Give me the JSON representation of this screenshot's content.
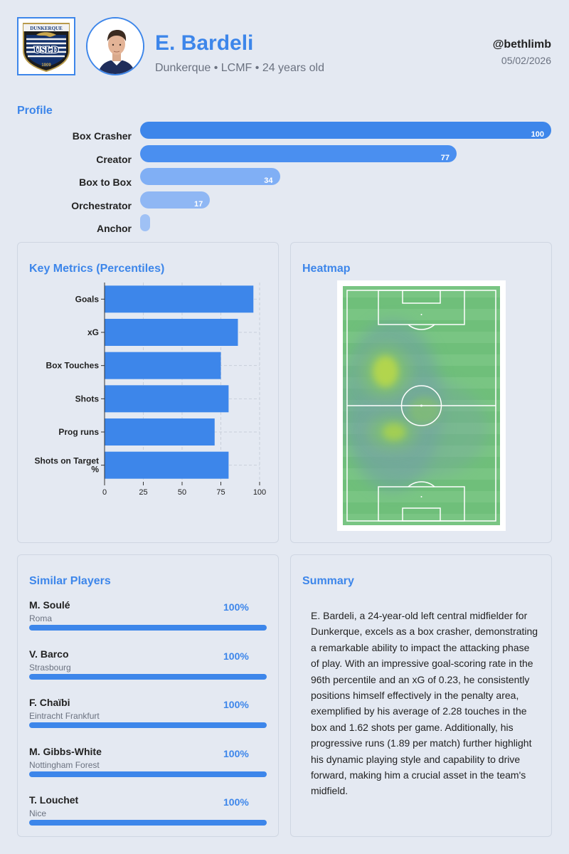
{
  "header": {
    "club_logo_text": "DUNKERQUE",
    "club_logo_monogram": "USLD",
    "club_logo_year": "1909",
    "player_name": "E. Bardeli",
    "player_sub": "Dunkerque • LCMF • 24 years old",
    "handle": "@bethlimb",
    "date": "05/02/2026"
  },
  "profile": {
    "title": "Profile",
    "items": [
      {
        "label": "Box Crasher",
        "value": 100,
        "value_label": "100",
        "color": "#3d86ea"
      },
      {
        "label": "Creator",
        "value": 77,
        "value_label": "77",
        "color": "#4a8ff0"
      },
      {
        "label": "Box to Box",
        "value": 34,
        "value_label": "34",
        "color": "#80aff5"
      },
      {
        "label": "Orchestrator",
        "value": 17,
        "value_label": "17",
        "color": "#8fb7f4"
      },
      {
        "label": "Anchor",
        "value": 0,
        "value_label": "",
        "color": "#9fc1f5"
      }
    ]
  },
  "metrics": {
    "title": "Key Metrics (Percentiles)"
  },
  "chart_data": {
    "type": "bar",
    "orientation": "horizontal",
    "categories": [
      "Goals",
      "xG",
      "Box Touches",
      "Shots",
      "Prog runs",
      "Shots on Target %"
    ],
    "category_lines": [
      [
        "Goals"
      ],
      [
        "xG"
      ],
      [
        "Box Touches"
      ],
      [
        "Shots"
      ],
      [
        "Prog runs"
      ],
      [
        "Shots on Target",
        "%"
      ]
    ],
    "values": [
      96,
      86,
      75,
      80,
      71,
      80
    ],
    "xlim": [
      0,
      100
    ],
    "xticks": [
      0,
      25,
      50,
      75,
      100
    ],
    "grid": true,
    "bar_color": "#3d86ea"
  },
  "heatmap": {
    "title": "Heatmap"
  },
  "similar": {
    "title": "Similar Players",
    "players": [
      {
        "name": "M. Soulé",
        "club": "Roma",
        "pct_label": "100%",
        "pct": 100
      },
      {
        "name": "V. Barco",
        "club": "Strasbourg",
        "pct_label": "100%",
        "pct": 100
      },
      {
        "name": "F. Chaïbi",
        "club": "Eintracht Frankfurt",
        "pct_label": "100%",
        "pct": 100
      },
      {
        "name": "M. Gibbs-White",
        "club": "Nottingham Forest",
        "pct_label": "100%",
        "pct": 100
      },
      {
        "name": "T. Louchet",
        "club": "Nice",
        "pct_label": "100%",
        "pct": 100
      }
    ]
  },
  "summary": {
    "title": "Summary",
    "text": "E. Bardeli, a 24-year-old left central midfielder for Dunkerque, excels as a box crasher, demonstrating a remarkable ability to impact the attacking phase of play. With an impressive goal-scoring rate in the 96th percentile and an xG of 0.23, he consistently positions himself effectively in the penalty area, exemplified by his average of 2.28 touches in the box and 1.62 shots per game. Additionally, his progressive runs (1.89 per match) further highlight his dynamic playing style and capability to drive forward, making him a crucial asset in the team's midfield."
  }
}
